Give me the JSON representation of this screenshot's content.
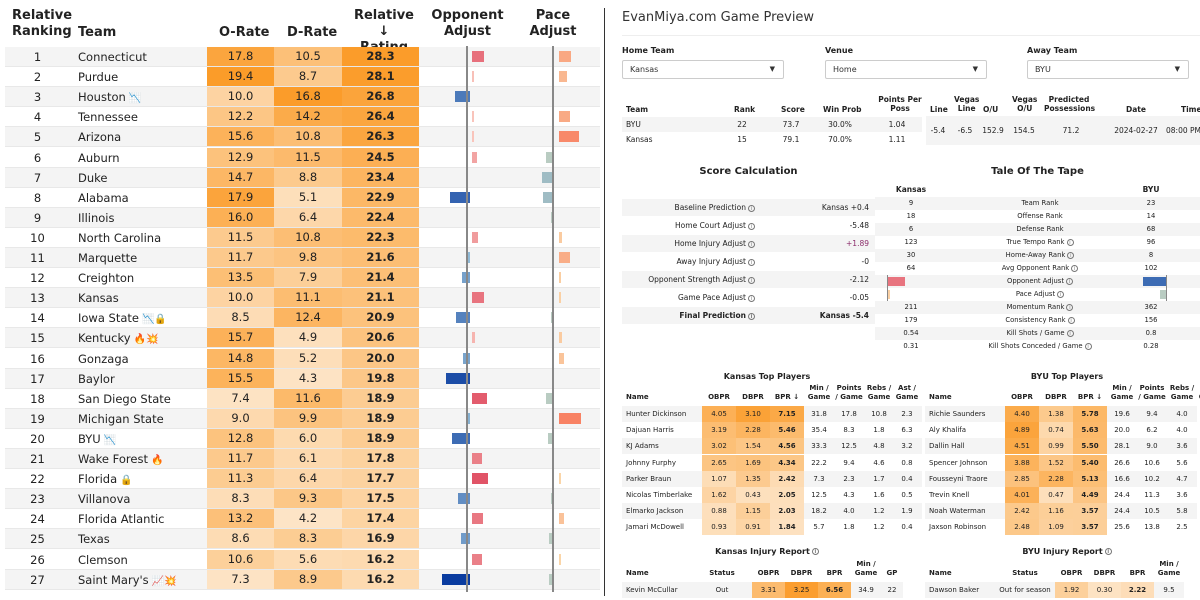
{
  "rankings": {
    "headers": {
      "ranking": "Relative\nRanking",
      "ranking_l1": "Relative",
      "ranking_l2": "Ranking",
      "team": "Team",
      "orate": "O-Rate",
      "drate": "D-Rate",
      "rel_l1": "Relative ↓",
      "rel_l2": "Rating",
      "opp_l1": "Opponent",
      "opp_l2": "Adjust",
      "pace_l1": "Pace",
      "pace_l2": "Adjust"
    },
    "rows": [
      {
        "rank": "1",
        "team": "Connecticut",
        "icons": "",
        "orate": "17.8",
        "drate": "10.5",
        "rel": "28.3",
        "opp": 2.2,
        "pace": 2.0
      },
      {
        "rank": "2",
        "team": "Purdue",
        "icons": "",
        "orate": "19.4",
        "drate": "8.7",
        "rel": "28.1",
        "opp": 0.2,
        "pace": 1.3
      },
      {
        "rank": "3",
        "team": "Houston",
        "icons": "📉",
        "orate": "10.0",
        "drate": "16.8",
        "rel": "26.8",
        "opp": -2.8,
        "pace": 0
      },
      {
        "rank": "4",
        "team": "Tennessee",
        "icons": "",
        "orate": "12.2",
        "drate": "14.2",
        "rel": "26.4",
        "opp": 0.1,
        "pace": 1.9
      },
      {
        "rank": "5",
        "team": "Arizona",
        "icons": "",
        "orate": "15.6",
        "drate": "10.8",
        "rel": "26.3",
        "opp": 0.1,
        "pace": 3.3
      },
      {
        "rank": "6",
        "team": "Auburn",
        "icons": "",
        "orate": "12.9",
        "drate": "11.5",
        "rel": "24.5",
        "opp": 0.9,
        "pace": -1.1
      },
      {
        "rank": "7",
        "team": "Duke",
        "icons": "",
        "orate": "14.7",
        "drate": "8.8",
        "rel": "23.4",
        "opp": 0,
        "pace": -1.8
      },
      {
        "rank": "8",
        "team": "Alabama",
        "icons": "",
        "orate": "17.9",
        "drate": "5.1",
        "rel": "22.9",
        "opp": -3.6,
        "pace": -1.7
      },
      {
        "rank": "9",
        "team": "Illinois",
        "icons": "",
        "orate": "16.0",
        "drate": "6.4",
        "rel": "22.4",
        "opp": 0,
        "pace": -0.2
      },
      {
        "rank": "10",
        "team": "North Carolina",
        "icons": "",
        "orate": "11.5",
        "drate": "10.8",
        "rel": "22.3",
        "opp": 1.1,
        "pace": 0.5
      },
      {
        "rank": "11",
        "team": "Marquette",
        "icons": "",
        "orate": "11.7",
        "drate": "9.8",
        "rel": "21.6",
        "opp": -0.5,
        "pace": 1.8
      },
      {
        "rank": "12",
        "team": "Creighton",
        "icons": "",
        "orate": "13.5",
        "drate": "7.9",
        "rel": "21.4",
        "opp": -1.4,
        "pace": 0.4
      },
      {
        "rank": "13",
        "team": "Kansas",
        "icons": "",
        "orate": "10.0",
        "drate": "11.1",
        "rel": "21.1",
        "opp": 2.1,
        "pace": 0.3
      },
      {
        "rank": "14",
        "team": "Iowa State",
        "icons": "📉🔒",
        "orate": "8.5",
        "drate": "12.4",
        "rel": "20.9",
        "opp": -2.5,
        "pace": -0.2
      },
      {
        "rank": "15",
        "team": "Kentucky",
        "icons": "🔥💥",
        "orate": "15.7",
        "drate": "4.9",
        "rel": "20.6",
        "opp": 0.5,
        "pace": 0.5
      },
      {
        "rank": "16",
        "team": "Gonzaga",
        "icons": "",
        "orate": "14.8",
        "drate": "5.2",
        "rel": "20.0",
        "opp": -1.3,
        "pace": 0.8
      },
      {
        "rank": "17",
        "team": "Baylor",
        "icons": "",
        "orate": "15.5",
        "drate": "4.3",
        "rel": "19.8",
        "opp": -4.4,
        "pace": 0
      },
      {
        "rank": "18",
        "team": "San Diego State",
        "icons": "",
        "orate": "7.4",
        "drate": "11.6",
        "rel": "18.9",
        "opp": 2.7,
        "pace": -1.2
      },
      {
        "rank": "19",
        "team": "Michigan State",
        "icons": "",
        "orate": "9.0",
        "drate": "9.9",
        "rel": "18.9",
        "opp": -0.8,
        "pace": 3.6
      },
      {
        "rank": "20",
        "team": "BYU",
        "icons": "📉",
        "orate": "12.8",
        "drate": "6.0",
        "rel": "18.9",
        "opp": -3.3,
        "pace": -0.8
      },
      {
        "rank": "21",
        "team": "Wake Forest",
        "icons": "🔥",
        "orate": "11.7",
        "drate": "6.1",
        "rel": "17.8",
        "opp": 1.8,
        "pace": 0
      },
      {
        "rank": "22",
        "team": "Florida",
        "icons": "🔒",
        "orate": "11.3",
        "drate": "6.4",
        "rel": "17.7",
        "opp": 2.9,
        "pace": 0.1
      },
      {
        "rank": "23",
        "team": "Villanova",
        "icons": "",
        "orate": "8.3",
        "drate": "9.3",
        "rel": "17.5",
        "opp": -2.1,
        "pace": -0.1
      },
      {
        "rank": "24",
        "team": "Florida Atlantic",
        "icons": "",
        "orate": "13.2",
        "drate": "4.2",
        "rel": "17.4",
        "opp": 2.0,
        "pace": 0.9
      },
      {
        "rank": "25",
        "team": "Texas",
        "icons": "",
        "orate": "8.6",
        "drate": "8.3",
        "rel": "16.9",
        "opp": -1.6,
        "pace": -0.7
      },
      {
        "rank": "26",
        "team": "Clemson",
        "icons": "",
        "orate": "10.6",
        "drate": "5.6",
        "rel": "16.2",
        "opp": 1.8,
        "pace": 0.1
      },
      {
        "rank": "27",
        "team": "Saint Mary's",
        "icons": "📈💥",
        "orate": "7.3",
        "drate": "8.9",
        "rel": "16.2",
        "opp": -5.1,
        "pace": -0.7
      }
    ]
  },
  "preview": {
    "title": "EvanMiya.com Game Preview",
    "home_label": "Home Team",
    "home_value": "Kansas",
    "venue_label": "Venue",
    "venue_value": "Home",
    "away_label": "Away Team",
    "away_value": "BYU",
    "summary_headers": {
      "team": "Team",
      "rank": "Rank",
      "score": "Score",
      "winprob": "Win Prob",
      "ppp_l1": "Points Per",
      "ppp_l2": "Poss"
    },
    "summary_rows": [
      {
        "team": "BYU",
        "rank": "22",
        "score": "73.7",
        "winprob": "30.0%",
        "ppp": "1.04"
      },
      {
        "team": "Kansas",
        "rank": "15",
        "score": "79.1",
        "winprob": "70.0%",
        "ppp": "1.11"
      }
    ],
    "line_headers": {
      "line": "Line",
      "vline_l1": "Vegas",
      "vline_l2": "Line",
      "ou": "O/U",
      "vou_l1": "Vegas",
      "vou_l2": "O/U",
      "pp_l1": "Predicted",
      "pp_l2": "Possessions",
      "date": "Date",
      "time": "Time"
    },
    "line_values": {
      "line": "-5.4",
      "vline": "-6.5",
      "ou": "152.9",
      "vou": "154.5",
      "pp": "71.2",
      "date": "2024-02-27",
      "time": "08:00 PM"
    },
    "score_calc": {
      "title": "Score Calculation",
      "rows": [
        {
          "label": "Baseline Prediction",
          "value": "Kansas +0.4",
          "bold": false,
          "color": "#222"
        },
        {
          "label": "Home Court Adjust",
          "value": "-5.48",
          "bold": false,
          "color": "#222"
        },
        {
          "label": "Home Injury Adjust",
          "value": "+1.89",
          "bold": false,
          "color": "#8b2c6b"
        },
        {
          "label": "Away Injury Adjust",
          "value": "-0",
          "bold": false,
          "color": "#222"
        },
        {
          "label": "Opponent Strength Adjust",
          "value": "-2.12",
          "bold": false,
          "color": "#222"
        },
        {
          "label": "Game Pace Adjust",
          "value": "-0.05",
          "bold": false,
          "color": "#222"
        },
        {
          "label": "Final Prediction",
          "value": "Kansas -5.4",
          "bold": true,
          "color": "#222"
        }
      ]
    },
    "tale": {
      "title": "Tale Of The Tape",
      "left_team": "Kansas",
      "right_team": "BYU",
      "rows": [
        {
          "k": "9",
          "label": "Team Rank",
          "b": "23",
          "info": false
        },
        {
          "k": "18",
          "label": "Offense Rank",
          "b": "14",
          "info": false
        },
        {
          "k": "6",
          "label": "Defense Rank",
          "b": "68",
          "info": false
        },
        {
          "k": "123",
          "label": "True Tempo Rank",
          "b": "96",
          "info": true
        },
        {
          "k": "30",
          "label": "Home-Away Rank",
          "b": "8",
          "info": true
        },
        {
          "k": "64",
          "label": "Avg Opponent Rank",
          "b": "102",
          "info": true
        },
        {
          "k": "",
          "label": "Opponent Adjust",
          "b": "",
          "info": true,
          "kbar": 2.1,
          "bbar": -3.3
        },
        {
          "k": "",
          "label": "Pace Adjust",
          "b": "",
          "info": true,
          "kbar": 0.3,
          "bbar": -0.8
        },
        {
          "k": "211",
          "label": "Momentum Rank",
          "b": "362",
          "info": true
        },
        {
          "k": "179",
          "label": "Consistency Rank",
          "b": "156",
          "info": true
        },
        {
          "k": "0.54",
          "label": "Kill Shots / Game",
          "b": "0.8",
          "info": true
        },
        {
          "k": "0.31",
          "label": "Kill Shots Conceded / Game",
          "b": "0.28",
          "info": true
        }
      ]
    },
    "player_headers": {
      "name": "Name",
      "obpr": "OBPR",
      "dbpr": "DBPR",
      "bpr": "BPR ↓",
      "min_l1": "Min /",
      "min_l2": "Game",
      "pts_l1": "Points",
      "pts_l2": "/ Game",
      "reb_l1": "Rebs /",
      "reb_l2": "Game",
      "ast_l1": "Ast /",
      "ast_l2": "Game"
    },
    "kansas_players": {
      "title": "Kansas Top Players",
      "rows": [
        {
          "name": "Hunter Dickinson",
          "obpr": "4.05",
          "dbpr": "3.10",
          "bpr": "7.15",
          "min": "31.8",
          "pts": "17.8",
          "reb": "10.8",
          "ast": "2.3"
        },
        {
          "name": "Dajuan Harris",
          "obpr": "3.19",
          "dbpr": "2.28",
          "bpr": "5.46",
          "min": "35.4",
          "pts": "8.3",
          "reb": "1.8",
          "ast": "6.3"
        },
        {
          "name": "KJ Adams",
          "obpr": "3.02",
          "dbpr": "1.54",
          "bpr": "4.56",
          "min": "33.3",
          "pts": "12.5",
          "reb": "4.8",
          "ast": "3.2"
        },
        {
          "name": "Johnny Furphy",
          "obpr": "2.65",
          "dbpr": "1.69",
          "bpr": "4.34",
          "min": "22.2",
          "pts": "9.4",
          "reb": "4.6",
          "ast": "0.8"
        },
        {
          "name": "Parker Braun",
          "obpr": "1.07",
          "dbpr": "1.35",
          "bpr": "2.42",
          "min": "7.3",
          "pts": "2.3",
          "reb": "1.7",
          "ast": "0.4"
        },
        {
          "name": "Nicolas Timberlake",
          "obpr": "1.62",
          "dbpr": "0.43",
          "bpr": "2.05",
          "min": "12.5",
          "pts": "4.3",
          "reb": "1.6",
          "ast": "0.5"
        },
        {
          "name": "Elmarko Jackson",
          "obpr": "0.88",
          "dbpr": "1.15",
          "bpr": "2.03",
          "min": "18.2",
          "pts": "4.0",
          "reb": "1.2",
          "ast": "1.9"
        },
        {
          "name": "Jamari McDowell",
          "obpr": "0.93",
          "dbpr": "0.91",
          "bpr": "1.84",
          "min": "5.7",
          "pts": "1.8",
          "reb": "1.2",
          "ast": "0.4"
        }
      ]
    },
    "byu_players": {
      "title": "BYU Top Players",
      "rows": [
        {
          "name": "Richie Saunders",
          "obpr": "4.40",
          "dbpr": "1.38",
          "bpr": "5.78",
          "min": "19.6",
          "pts": "9.4",
          "reb": "4.0",
          "ast": ""
        },
        {
          "name": "Aly Khalifa",
          "obpr": "4.89",
          "dbpr": "0.74",
          "bpr": "5.63",
          "min": "20.0",
          "pts": "6.2",
          "reb": "4.0",
          "ast": ""
        },
        {
          "name": "Dallin Hall",
          "obpr": "4.51",
          "dbpr": "0.99",
          "bpr": "5.50",
          "min": "28.1",
          "pts": "9.0",
          "reb": "3.6",
          "ast": ""
        },
        {
          "name": "Spencer Johnson",
          "obpr": "3.88",
          "dbpr": "1.52",
          "bpr": "5.40",
          "min": "26.6",
          "pts": "10.6",
          "reb": "5.6",
          "ast": ""
        },
        {
          "name": "Fousseyni Traore",
          "obpr": "2.85",
          "dbpr": "2.28",
          "bpr": "5.13",
          "min": "16.6",
          "pts": "10.2",
          "reb": "4.7",
          "ast": ""
        },
        {
          "name": "Trevin Knell",
          "obpr": "4.01",
          "dbpr": "0.47",
          "bpr": "4.49",
          "min": "24.4",
          "pts": "11.3",
          "reb": "3.6",
          "ast": ""
        },
        {
          "name": "Noah Waterman",
          "obpr": "2.42",
          "dbpr": "1.16",
          "bpr": "3.57",
          "min": "24.4",
          "pts": "10.5",
          "reb": "5.8",
          "ast": ""
        },
        {
          "name": "Jaxson Robinson",
          "obpr": "2.48",
          "dbpr": "1.09",
          "bpr": "3.57",
          "min": "25.6",
          "pts": "13.8",
          "reb": "2.5",
          "ast": ""
        }
      ]
    },
    "injury_headers": {
      "name": "Name",
      "status": "Status",
      "obpr": "OBPR",
      "dbpr": "DBPR",
      "bpr": "BPR",
      "min_l1": "Min /",
      "min_l2": "Game",
      "gp": "GP"
    },
    "kansas_injury": {
      "title": "Kansas Injury Report",
      "rows": [
        {
          "name": "Kevin McCullar",
          "status": "Out",
          "obpr": "3.31",
          "dbpr": "3.25",
          "bpr": "6.56",
          "min": "34.9",
          "gp": "22"
        }
      ]
    },
    "byu_injury": {
      "title": "BYU Injury Report",
      "rows": [
        {
          "name": "Dawson Baker",
          "status": "Out for season",
          "obpr": "1.92",
          "dbpr": "0.30",
          "bpr": "2.22",
          "min": "9.5",
          "gp": ""
        }
      ]
    }
  }
}
